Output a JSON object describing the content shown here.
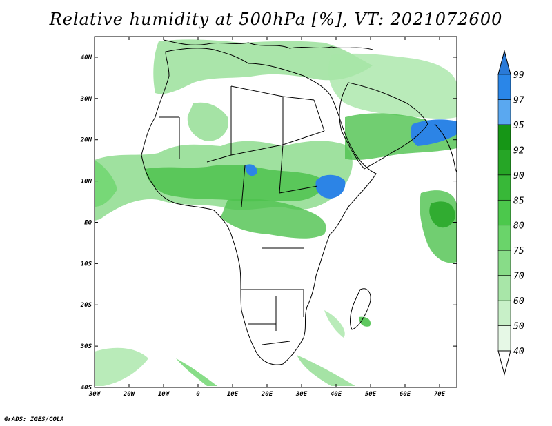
{
  "title": "Relative humidity at 500hPa [%], VT: 2021072600",
  "credit": "GrADS: IGES/COLA",
  "map": {
    "lon_range": [
      -30,
      75
    ],
    "lat_range": [
      -40,
      45
    ],
    "lat_ticks": [
      {
        "value": 40,
        "label": "40N"
      },
      {
        "value": 30,
        "label": "30N"
      },
      {
        "value": 20,
        "label": "20N"
      },
      {
        "value": 10,
        "label": "10N"
      },
      {
        "value": 0,
        "label": "EQ"
      },
      {
        "value": -10,
        "label": "10S"
      },
      {
        "value": -20,
        "label": "20S"
      },
      {
        "value": -30,
        "label": "30S"
      },
      {
        "value": -40,
        "label": "40S"
      }
    ],
    "lon_ticks": [
      {
        "value": -30,
        "label": "30W"
      },
      {
        "value": -20,
        "label": "20W"
      },
      {
        "value": -10,
        "label": "10W"
      },
      {
        "value": 0,
        "label": "0"
      },
      {
        "value": 10,
        "label": "10E"
      },
      {
        "value": 20,
        "label": "20E"
      },
      {
        "value": 30,
        "label": "30E"
      },
      {
        "value": 40,
        "label": "40E"
      },
      {
        "value": 50,
        "label": "50E"
      },
      {
        "value": 60,
        "label": "60E"
      },
      {
        "value": 70,
        "label": "70E"
      }
    ]
  },
  "colorbar": {
    "levels": [
      "40",
      "50",
      "60",
      "70",
      "75",
      "80",
      "85",
      "90",
      "92",
      "95",
      "97",
      "99"
    ],
    "colors": [
      "#e6f8e6",
      "#c8f0c8",
      "#a8e6a8",
      "#88dc88",
      "#6ad46a",
      "#4cc84c",
      "#38b838",
      "#26a626",
      "#169616",
      "#5aa8f0",
      "#2a86e8"
    ],
    "low_color": "#ffffff",
    "high_color": "#2a7ad8"
  },
  "fill_colors": {
    "light": "#d4f2d4",
    "mid": "#8edc8e",
    "strong": "#4ec24e",
    "dark": "#2aa62a",
    "wet": "#2c84e6",
    "coast": "#000000"
  }
}
